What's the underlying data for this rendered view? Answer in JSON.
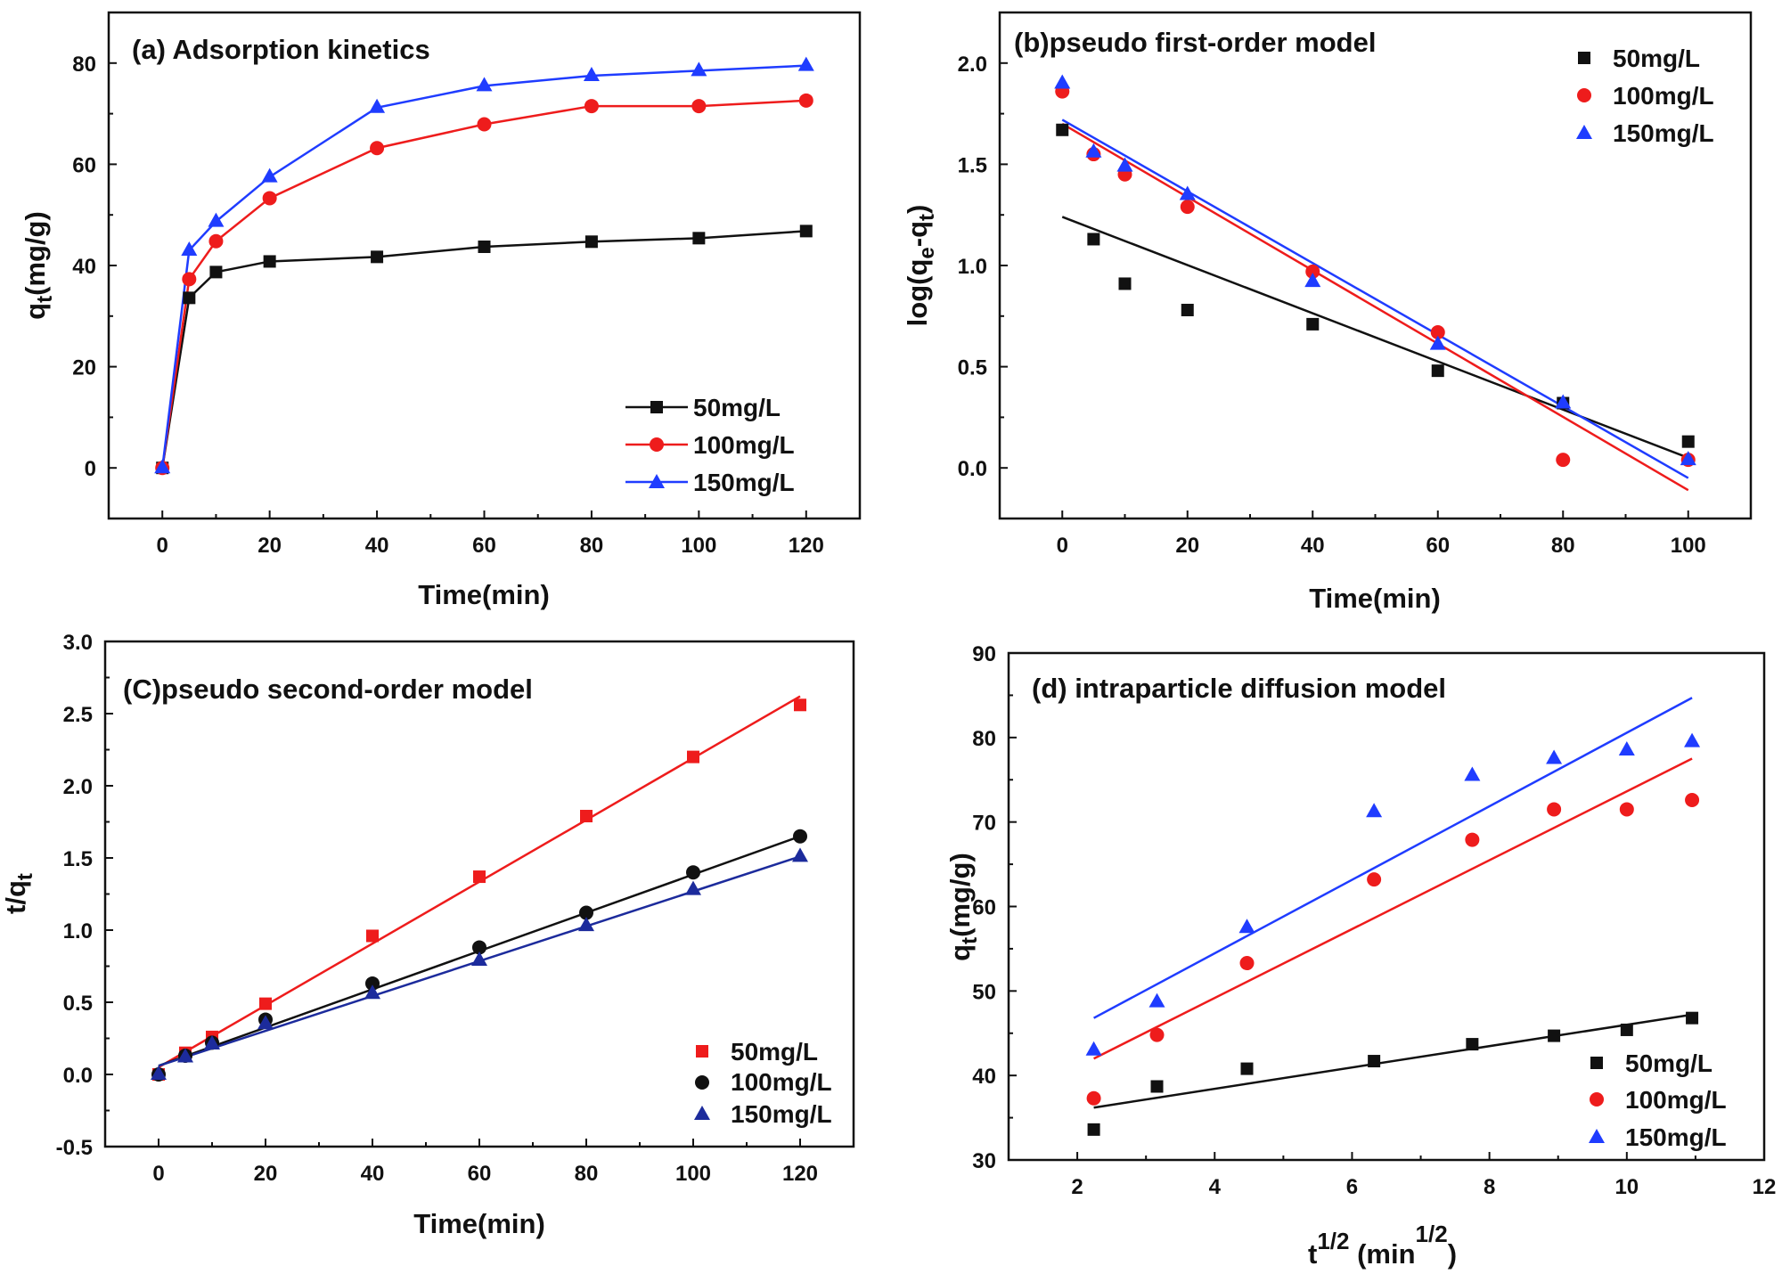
{
  "colors": {
    "s50": "#111111",
    "s100": "#ee1c1c",
    "s150": "#1f3cff",
    "s150_dark": "#1c2b9c"
  },
  "chart_data": [
    {
      "type": "line",
      "title": "(a) Adsorption kinetics",
      "xlabel": "Time(min)",
      "ylabel": "q_t(mg/g)",
      "ylabel_main": "q",
      "ylabel_sub": "t",
      "ylabel_rest": "(mg/g)",
      "xlim": [
        -10,
        130
      ],
      "ylim": [
        -10,
        90
      ],
      "xticks": [
        0,
        20,
        40,
        60,
        80,
        100,
        120
      ],
      "yticks": [
        0,
        20,
        40,
        60,
        80
      ],
      "legend_position": "bottom-right",
      "x": [
        0,
        5,
        10,
        20,
        40,
        60,
        80,
        100,
        120
      ],
      "series": [
        {
          "name": "50mg/L",
          "marker": "square",
          "values": [
            0,
            33.6,
            38.7,
            40.8,
            41.7,
            43.7,
            44.7,
            45.4,
            46.8
          ]
        },
        {
          "name": "100mg/L",
          "marker": "circle",
          "values": [
            0,
            37.3,
            44.8,
            53.3,
            63.2,
            67.9,
            71.5,
            71.5,
            72.6
          ]
        },
        {
          "name": "150mg/L",
          "marker": "triangle",
          "values": [
            0,
            43.0,
            48.7,
            57.5,
            71.2,
            75.5,
            77.5,
            78.5,
            79.5
          ]
        }
      ]
    },
    {
      "type": "scatter",
      "title": "(b)pseudo first-order model",
      "xlabel": "Time(min)",
      "ylabel": "log(q_e-q_t)",
      "ylabel_pre": "log(q",
      "ylabel_sub1": "e",
      "ylabel_mid": "-q",
      "ylabel_sub2": "t",
      "ylabel_post": ")",
      "xlim": [
        -10,
        110
      ],
      "ylim": [
        -0.25,
        2.25
      ],
      "xticks": [
        0,
        20,
        40,
        60,
        80,
        100
      ],
      "yticks": [
        0.0,
        0.5,
        1.0,
        1.5,
        2.0
      ],
      "ytick_labels": [
        "0.0",
        "0.5",
        "1.0",
        "1.5",
        "2.0"
      ],
      "legend_position": "top-right",
      "x": [
        0,
        5,
        10,
        20,
        40,
        60,
        80,
        100
      ],
      "series": [
        {
          "name": "50mg/L",
          "marker": "square",
          "values": [
            1.67,
            1.13,
            0.91,
            0.78,
            0.71,
            0.48,
            0.32,
            0.13
          ],
          "fit": [
            1.24,
            0.05
          ]
        },
        {
          "name": "100mg/L",
          "marker": "circle",
          "values": [
            1.86,
            1.55,
            1.45,
            1.29,
            0.97,
            0.67,
            0.04,
            0.04
          ],
          "fit": [
            1.7,
            -0.11
          ]
        },
        {
          "name": "150mg/L",
          "marker": "triangle",
          "values": [
            1.9,
            1.56,
            1.49,
            1.35,
            0.92,
            0.61,
            0.32,
            0.04
          ],
          "fit": [
            1.72,
            -0.05
          ]
        }
      ]
    },
    {
      "type": "scatter",
      "title": "(C)pseudo second-order model",
      "xlabel": "Time(min)",
      "ylabel": "t/q_t",
      "ylabel_main": "t/q",
      "ylabel_sub": "t",
      "xlim": [
        -10,
        130
      ],
      "ylim": [
        -0.5,
        3.0
      ],
      "xticks": [
        0,
        20,
        40,
        60,
        80,
        100,
        120
      ],
      "yticks": [
        -0.5,
        0.0,
        0.5,
        1.0,
        1.5,
        2.0,
        2.5,
        3.0
      ],
      "ytick_labels": [
        "-0.5",
        "0.0",
        "0.5",
        "1.0",
        "1.5",
        "2.0",
        "2.5",
        "3.0"
      ],
      "legend_position": "bottom-right",
      "x": [
        0,
        5,
        10,
        20,
        40,
        60,
        80,
        100,
        120
      ],
      "series": [
        {
          "name": "50mg/L",
          "marker": "square",
          "values": [
            0.0,
            0.15,
            0.26,
            0.49,
            0.96,
            1.37,
            1.79,
            2.2,
            2.56
          ],
          "fit": [
            0.05,
            2.62
          ]
        },
        {
          "name": "100mg/L",
          "marker": "circle",
          "values": [
            0.0,
            0.13,
            0.22,
            0.38,
            0.63,
            0.88,
            1.12,
            1.4,
            1.65
          ],
          "fit": [
            0.06,
            1.65
          ]
        },
        {
          "name": "150mg/L",
          "marker": "triangle",
          "values": [
            0.0,
            0.12,
            0.21,
            0.35,
            0.56,
            0.79,
            1.03,
            1.28,
            1.51
          ],
          "fit": [
            0.06,
            1.51
          ]
        }
      ]
    },
    {
      "type": "scatter",
      "title": "(d) intraparticle diffusion model",
      "xlabel": "t^1/2 (min^1/2)",
      "xlabel_t": "t",
      "xlabel_sup1": "1/2",
      "xlabel_mid": " (min",
      "xlabel_sup2": "1/2",
      "xlabel_close": ")",
      "ylabel": "q_t(mg/g)",
      "ylabel_main": "q",
      "ylabel_sub": "t",
      "ylabel_rest": "(mg/g)",
      "xlim": [
        1,
        12
      ],
      "ylim": [
        30,
        90
      ],
      "xticks": [
        2,
        4,
        6,
        8,
        10,
        12
      ],
      "yticks": [
        30,
        40,
        50,
        60,
        70,
        80,
        90
      ],
      "legend_position": "bottom-right",
      "x": [
        2.24,
        3.16,
        4.47,
        6.32,
        7.75,
        8.94,
        10.0,
        10.95
      ],
      "series": [
        {
          "name": "50mg/L",
          "marker": "square",
          "values": [
            33.6,
            38.7,
            40.8,
            41.7,
            43.7,
            44.7,
            45.4,
            46.8
          ],
          "fit": [
            36.2,
            47.2
          ]
        },
        {
          "name": "100mg/L",
          "marker": "circle",
          "values": [
            37.3,
            44.8,
            53.3,
            63.2,
            67.9,
            71.5,
            71.5,
            72.6
          ],
          "fit": [
            42.0,
            77.5
          ]
        },
        {
          "name": "150mg/L",
          "marker": "triangle",
          "values": [
            43.0,
            48.7,
            57.5,
            71.2,
            75.5,
            77.5,
            78.5,
            79.5
          ],
          "fit": [
            46.8,
            84.7
          ]
        }
      ]
    }
  ]
}
